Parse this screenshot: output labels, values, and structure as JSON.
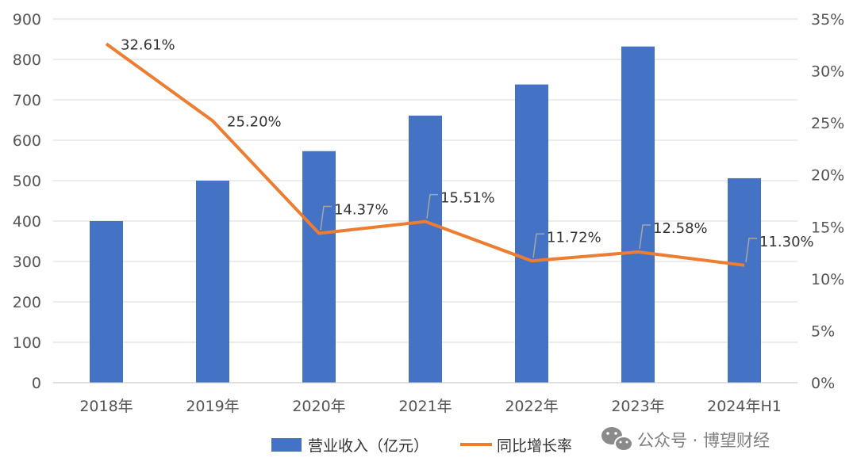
{
  "chart_data": {
    "type": "bar",
    "categories": [
      "2018年",
      "2019年",
      "2020年",
      "2021年",
      "2022年",
      "2023年",
      "2024年H1"
    ],
    "series": [
      {
        "name": "营业收入（亿元）",
        "type": "bar",
        "axis": "left",
        "color": "#4472C4",
        "values": [
          400,
          500,
          573,
          661,
          738,
          832,
          506
        ]
      },
      {
        "name": "同比增长率",
        "type": "line",
        "axis": "right",
        "color": "#ED7D31",
        "values": [
          32.61,
          25.2,
          14.37,
          15.51,
          11.72,
          12.58,
          11.3
        ],
        "labels": [
          "32.61%",
          "25.20%",
          "14.37%",
          "15.51%",
          "11.72%",
          "12.58%",
          "11.30%"
        ]
      }
    ],
    "y_left": {
      "ylim": [
        0,
        900
      ],
      "ticks": [
        "0",
        "100",
        "200",
        "300",
        "400",
        "500",
        "600",
        "700",
        "800",
        "900"
      ]
    },
    "y_right": {
      "ylim": [
        0,
        35
      ],
      "ticks": [
        "0%",
        "5%",
        "10%",
        "15%",
        "20%",
        "25%",
        "30%",
        "35%"
      ]
    },
    "grid": true,
    "legend_position": "bottom"
  },
  "watermark": {
    "icon": "wechat-icon",
    "text": "公众号 · 博望财经"
  }
}
